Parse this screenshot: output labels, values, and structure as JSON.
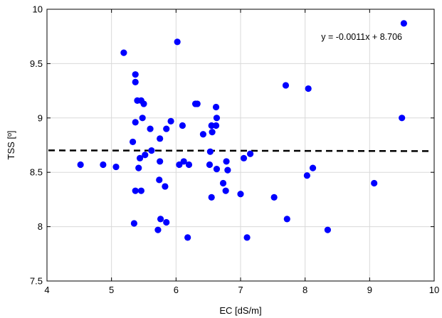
{
  "chart_data": {
    "type": "scatter",
    "xlabel": "EC [dS/m]",
    "ylabel": "TSS [º]",
    "xlim": [
      4,
      10
    ],
    "ylim": [
      7.5,
      10
    ],
    "x_ticks": [
      4,
      5,
      6,
      7,
      8,
      9,
      10
    ],
    "y_ticks": [
      7.5,
      8,
      8.5,
      9,
      9.5,
      10
    ],
    "x_tick_labels": [
      "4",
      "5",
      "6",
      "7",
      "8",
      "9",
      "10"
    ],
    "y_tick_labels": [
      "7.5",
      "8",
      "8.5",
      "9",
      "9.5",
      "10"
    ],
    "grid": true,
    "point_color": "#0000ff",
    "trend_color": "#000000",
    "annotation": "y = -0.0011x + 8.706",
    "trendline": {
      "slope": -0.0011,
      "intercept": 8.706
    },
    "points": [
      [
        4.52,
        8.57
      ],
      [
        4.87,
        8.57
      ],
      [
        5.07,
        8.55
      ],
      [
        5.19,
        9.6
      ],
      [
        5.33,
        8.78
      ],
      [
        5.35,
        8.03
      ],
      [
        5.37,
        9.4
      ],
      [
        5.37,
        9.33
      ],
      [
        5.37,
        8.96
      ],
      [
        5.37,
        8.33
      ],
      [
        5.4,
        9.16
      ],
      [
        5.42,
        8.54
      ],
      [
        5.44,
        8.63
      ],
      [
        5.46,
        9.16
      ],
      [
        5.46,
        8.33
      ],
      [
        5.48,
        9.0
      ],
      [
        5.5,
        9.13
      ],
      [
        5.52,
        8.66
      ],
      [
        5.6,
        8.9
      ],
      [
        5.62,
        8.7
      ],
      [
        5.72,
        7.97
      ],
      [
        5.74,
        8.43
      ],
      [
        5.75,
        8.81
      ],
      [
        5.75,
        8.6
      ],
      [
        5.76,
        8.07
      ],
      [
        5.83,
        8.37
      ],
      [
        5.85,
        8.04
      ],
      [
        5.85,
        8.9
      ],
      [
        5.92,
        8.97
      ],
      [
        6.02,
        9.7
      ],
      [
        6.05,
        8.57
      ],
      [
        6.1,
        8.93
      ],
      [
        6.12,
        8.6
      ],
      [
        6.18,
        7.9
      ],
      [
        6.2,
        8.57
      ],
      [
        6.3,
        9.13
      ],
      [
        6.33,
        9.13
      ],
      [
        6.42,
        8.85
      ],
      [
        6.52,
        8.57
      ],
      [
        6.53,
        8.69
      ],
      [
        6.55,
        8.27
      ],
      [
        6.55,
        8.93
      ],
      [
        6.56,
        8.87
      ],
      [
        6.62,
        8.93
      ],
      [
        6.62,
        9.1
      ],
      [
        6.63,
        9.0
      ],
      [
        6.63,
        8.53
      ],
      [
        6.73,
        8.4
      ],
      [
        6.77,
        8.33
      ],
      [
        6.78,
        8.6
      ],
      [
        6.8,
        8.52
      ],
      [
        7.0,
        8.3
      ],
      [
        7.05,
        8.63
      ],
      [
        7.1,
        7.9
      ],
      [
        7.15,
        8.67
      ],
      [
        7.52,
        8.27
      ],
      [
        7.7,
        9.3
      ],
      [
        7.72,
        8.07
      ],
      [
        8.03,
        8.47
      ],
      [
        8.05,
        9.27
      ],
      [
        8.12,
        8.54
      ],
      [
        8.35,
        7.97
      ],
      [
        9.07,
        8.4
      ],
      [
        9.5,
        9.0
      ],
      [
        9.53,
        9.87
      ]
    ]
  }
}
